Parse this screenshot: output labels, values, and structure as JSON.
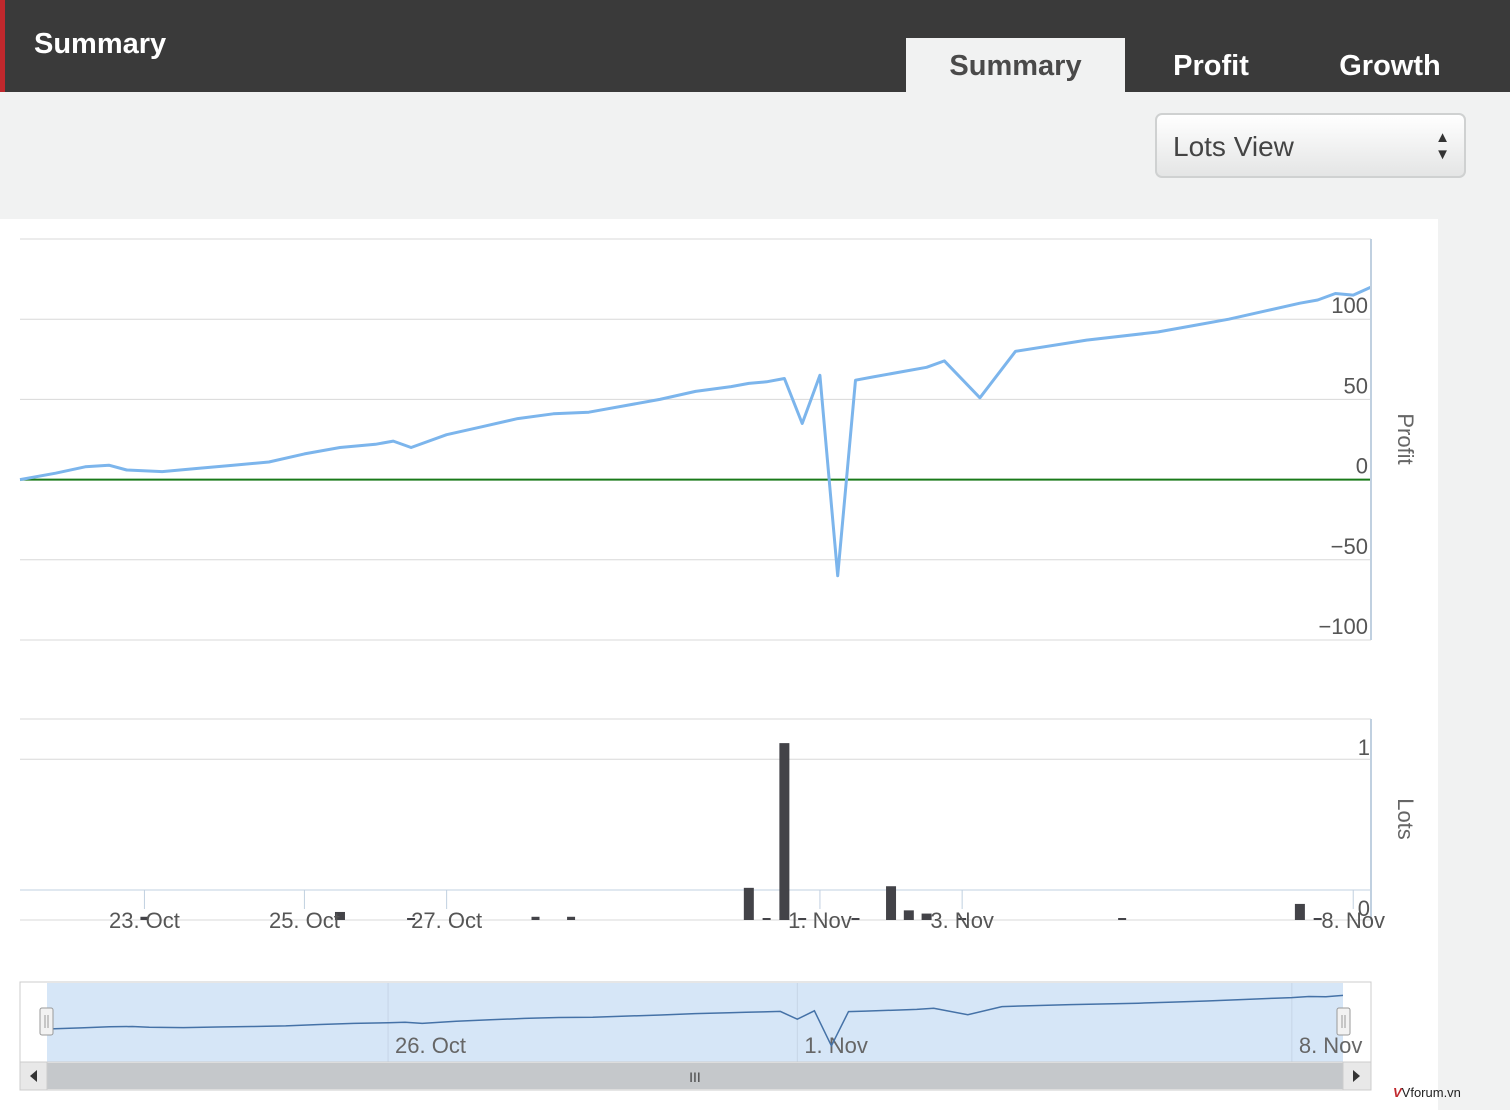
{
  "header": {
    "title": "Summary"
  },
  "tabs": [
    {
      "label": "Summary",
      "active": true
    },
    {
      "label": "Profit",
      "active": false
    },
    {
      "label": "Growth",
      "active": false
    }
  ],
  "view_select": {
    "value": "Lots View"
  },
  "watermark": {
    "mark": "V",
    "text": "Vforum.vn"
  },
  "colors": {
    "profit_line": "#7cb5ec",
    "zero_line": "#1a7a1a",
    "bars": "#434348",
    "navigator_fill": "#d6e6f7",
    "navigator_line": "#4572a7"
  },
  "chart_data": {
    "type": "line",
    "profit": {
      "ylabel": "Profit",
      "ylim": [
        -100,
        150
      ],
      "yticks": [
        -100,
        -50,
        0,
        50,
        100
      ],
      "x": [
        "2016-10-21T00:00",
        "2016-10-21T12:00",
        "2016-10-21T22:00",
        "2016-10-22T06:00",
        "2016-10-22T12:00",
        "2016-10-23T00:00",
        "2016-10-23T12:00",
        "2016-10-24T00:00",
        "2016-10-24T12:00",
        "2016-10-25T00:00",
        "2016-10-25T12:00",
        "2016-10-26T00:00",
        "2016-10-26T06:00",
        "2016-10-26T12:00",
        "2016-10-27T00:00",
        "2016-10-27T12:00",
        "2016-10-28T00:00",
        "2016-10-28T12:00",
        "2016-10-29T00:00",
        "2016-10-30T00:00",
        "2016-10-30T12:00",
        "2016-10-31T00:00",
        "2016-10-31T06:00",
        "2016-10-31T12:00",
        "2016-10-31T18:00",
        "2016-11-01T00:00",
        "2016-11-01T06:00",
        "2016-11-01T12:00",
        "2016-11-01T18:00",
        "2016-11-02T00:00",
        "2016-11-02T12:00",
        "2016-11-02T18:00",
        "2016-11-03T00:00",
        "2016-11-03T12:00",
        "2016-11-04T00:00",
        "2016-11-05T00:00",
        "2016-11-06T00:00",
        "2016-11-06T12:00",
        "2016-11-07T00:00",
        "2016-11-07T12:00",
        "2016-11-08T00:00",
        "2016-11-08T06:00",
        "2016-11-08T12:00",
        "2016-11-08T18:00",
        "2016-11-09T00:00"
      ],
      "values": [
        0,
        4,
        8,
        9,
        6,
        5,
        7,
        9,
        11,
        16,
        20,
        22,
        24,
        20,
        28,
        33,
        38,
        41,
        42,
        50,
        55,
        58,
        60,
        61,
        63,
        35,
        65,
        -60,
        62,
        64,
        68,
        70,
        74,
        51,
        80,
        87,
        92,
        96,
        100,
        105,
        110,
        112,
        116,
        115,
        120
      ]
    },
    "lots": {
      "ylabel": "Lots",
      "yticks": [
        0,
        1
      ],
      "ylim": [
        0,
        1.25
      ],
      "x": [
        "2016-10-22T18:00",
        "2016-10-25T12:00",
        "2016-10-26T12:00",
        "2016-10-28T06:00",
        "2016-10-28T18:00",
        "2016-10-31T06:00",
        "2016-10-31T12:00",
        "2016-10-31T18:00",
        "2016-11-01T00:00",
        "2016-11-01T18:00",
        "2016-11-02T06:00",
        "2016-11-02T12:00",
        "2016-11-02T18:00",
        "2016-11-03T06:00",
        "2016-11-05T12:00",
        "2016-11-08T00:00",
        "2016-11-08T06:00"
      ],
      "values": [
        0.02,
        0.05,
        0.01,
        0.02,
        0.02,
        0.2,
        0.01,
        1.1,
        0.01,
        0.01,
        0.21,
        0.06,
        0.04,
        0.01,
        0.01,
        0.1,
        0.01
      ]
    },
    "xticks": [
      "23. Oct",
      "25. Oct",
      "27. Oct",
      "1. Nov",
      "3. Nov",
      "8. Nov"
    ],
    "navigator": {
      "labels": [
        "26. Oct",
        "1. Nov",
        "8. Nov"
      ]
    },
    "grid": true,
    "legend": "none"
  }
}
